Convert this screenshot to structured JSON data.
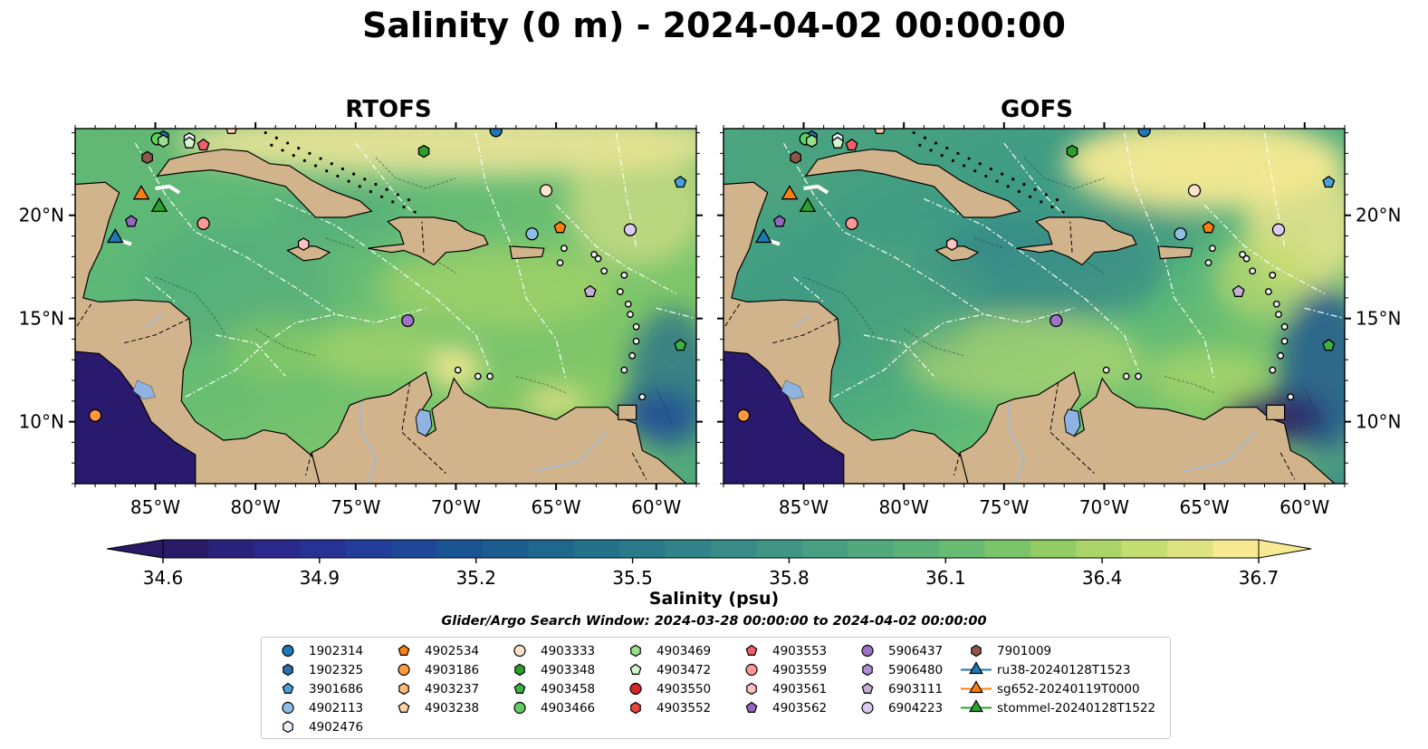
{
  "title": "Salinity (0 m) - 2024-04-02 00:00:00",
  "panels": [
    {
      "title": "RTOFS"
    },
    {
      "title": "GOFS"
    }
  ],
  "map_extent": {
    "lon": [
      -89,
      -58
    ],
    "lat": [
      7,
      24.2
    ]
  },
  "lon_ticks": [
    -85,
    -80,
    -75,
    -70,
    -65,
    -60
  ],
  "lon_tick_labels": [
    "85°W",
    "80°W",
    "75°W",
    "70°W",
    "65°W",
    "60°W"
  ],
  "lat_ticks": [
    10,
    15,
    20
  ],
  "lat_tick_labels": [
    "10°N",
    "15°N",
    "20°N"
  ],
  "colors": {
    "land": "#d2b48c",
    "lake": "#8fb4e3",
    "ocean_base": "#5bb878",
    "pacific": "#2a1a6e"
  },
  "colorbar": {
    "label": "Salinity (psu)",
    "min": 34.6,
    "max": 36.7,
    "tick_values": [
      34.6,
      34.9,
      35.2,
      35.5,
      35.8,
      36.1,
      36.4,
      36.7
    ],
    "tick_labels": [
      "34.6",
      "34.9",
      "35.2",
      "35.5",
      "35.8",
      "36.1",
      "36.4",
      "36.7"
    ],
    "colormap": [
      "#281a66",
      "#2a2a8f",
      "#213f9b",
      "#1a5791",
      "#1f6b8c",
      "#2d7e8a",
      "#3d9087",
      "#4da67e",
      "#63b872",
      "#8ccc63",
      "#c2dc6e",
      "#f7ea92"
    ]
  },
  "search_window": "Glider/Argo Search Window: 2024-03-28 00:00:00 to 2024-04-02 00:00:00",
  "legend": {
    "columns": [
      [
        {
          "label": "1902314",
          "marker": "circle",
          "color": "#1f77b4"
        },
        {
          "label": "1902325",
          "marker": "hexagon",
          "color": "#2c6fab"
        },
        {
          "label": "3901686",
          "marker": "pentagon",
          "color": "#4b9fd6"
        },
        {
          "label": "4902113",
          "marker": "circle",
          "color": "#8ec0e6"
        },
        {
          "label": "4902476",
          "marker": "hexagon",
          "color": "#e6f3fb"
        }
      ],
      [
        {
          "label": "4902534",
          "marker": "pentagon",
          "color": "#ff7f0e"
        },
        {
          "label": "4903186",
          "marker": "circle",
          "color": "#ff9a3c"
        },
        {
          "label": "4903237",
          "marker": "hexagon",
          "color": "#ffbb78"
        },
        {
          "label": "4903238",
          "marker": "pentagon",
          "color": "#ffd4a8"
        }
      ],
      [
        {
          "label": "4903333",
          "marker": "circle",
          "color": "#ffe4cc"
        },
        {
          "label": "4903348",
          "marker": "hexagon",
          "color": "#2ca02c"
        },
        {
          "label": "4903458",
          "marker": "pentagon",
          "color": "#3cb043"
        },
        {
          "label": "4903466",
          "marker": "circle",
          "color": "#5fcf5f"
        }
      ],
      [
        {
          "label": "4903469",
          "marker": "hexagon",
          "color": "#98df8a"
        },
        {
          "label": "4903472",
          "marker": "pentagon",
          "color": "#d5f5cf"
        },
        {
          "label": "4903550",
          "marker": "circle",
          "color": "#d62728"
        },
        {
          "label": "4903552",
          "marker": "hexagon",
          "color": "#e8453f"
        }
      ],
      [
        {
          "label": "4903553",
          "marker": "pentagon",
          "color": "#f0606a"
        },
        {
          "label": "4903559",
          "marker": "circle",
          "color": "#ff9896"
        },
        {
          "label": "4903561",
          "marker": "hexagon",
          "color": "#ffc2c0"
        },
        {
          "label": "4903562",
          "marker": "pentagon",
          "color": "#9467bd"
        }
      ],
      [
        {
          "label": "5906437",
          "marker": "circle",
          "color": "#9d72c9"
        },
        {
          "label": "5906480",
          "marker": "hexagon",
          "color": "#b28ddb"
        },
        {
          "label": "6903111",
          "marker": "pentagon",
          "color": "#c5b0d5"
        },
        {
          "label": "6904223",
          "marker": "circle",
          "color": "#dccbf0"
        }
      ],
      [
        {
          "label": "7901009",
          "marker": "hexagon",
          "color": "#8c564b"
        },
        {
          "label": "ru38-20240128T1523",
          "marker": "line-triangle",
          "color": "#1f77b4"
        },
        {
          "label": "sg652-20240119T0000",
          "marker": "line-triangle",
          "color": "#ff7f0e"
        },
        {
          "label": "stommel-20240128T1522",
          "marker": "line-triangle",
          "color": "#2ca02c"
        }
      ]
    ]
  },
  "floats": [
    {
      "label": "1902314",
      "lon": -68,
      "lat": 24.1,
      "marker": "circle",
      "color": "#1f77b4"
    },
    {
      "label": "1902325",
      "lon": -84.6,
      "lat": 23.8,
      "marker": "hexagon",
      "color": "#2c6fab"
    },
    {
      "label": "3901686",
      "lon": -58.8,
      "lat": 21.6,
      "marker": "pentagon",
      "color": "#4b9fd6"
    },
    {
      "label": "4902113",
      "lon": -66.2,
      "lat": 19.1,
      "marker": "circle",
      "color": "#8ec0e6"
    },
    {
      "label": "4902476",
      "lon": -83.3,
      "lat": 23.7,
      "marker": "hexagon",
      "color": "#e6f3fb"
    },
    {
      "label": "4902534",
      "lon": -64.8,
      "lat": 19.4,
      "marker": "pentagon",
      "color": "#ff7f0e"
    },
    {
      "label": "4903186",
      "lon": -88,
      "lat": 10.3,
      "marker": "circle",
      "color": "#ff9a3c"
    },
    {
      "label": "4903238",
      "lon": -81.2,
      "lat": 24.2,
      "marker": "pentagon",
      "color": "#ffd4a8"
    },
    {
      "label": "4903333",
      "lon": -65.5,
      "lat": 21.2,
      "marker": "circle",
      "color": "#ffe4cc"
    },
    {
      "label": "4903348",
      "lon": -71.6,
      "lat": 23.1,
      "marker": "hexagon",
      "color": "#2ca02c"
    },
    {
      "label": "4903458",
      "lon": -58.8,
      "lat": 13.7,
      "marker": "pentagon",
      "color": "#3cb043"
    },
    {
      "label": "4903466",
      "lon": -84.9,
      "lat": 23.7,
      "marker": "circle",
      "color": "#5fcf5f"
    },
    {
      "label": "4903469",
      "lon": -84.6,
      "lat": 23.6,
      "marker": "hexagon",
      "color": "#98df8a"
    },
    {
      "label": "4903472",
      "lon": -83.3,
      "lat": 23.5,
      "marker": "pentagon",
      "color": "#d5f5cf"
    },
    {
      "label": "4903553",
      "lon": -82.6,
      "lat": 23.4,
      "marker": "pentagon",
      "color": "#f0606a"
    },
    {
      "label": "4903559",
      "lon": -82.6,
      "lat": 19.6,
      "marker": "circle",
      "color": "#ff9896"
    },
    {
      "label": "4903561",
      "lon": -77.6,
      "lat": 18.6,
      "marker": "hexagon",
      "color": "#ffc2c0"
    },
    {
      "label": "4903562",
      "lon": -86.2,
      "lat": 19.7,
      "marker": "pentagon",
      "color": "#9467bd"
    },
    {
      "label": "5906437",
      "lon": -72.4,
      "lat": 14.9,
      "marker": "circle",
      "color": "#9d72c9"
    },
    {
      "label": "6903111",
      "lon": -63.3,
      "lat": 16.3,
      "marker": "pentagon",
      "color": "#c5b0d5"
    },
    {
      "label": "6904223",
      "lon": -61.3,
      "lat": 19.3,
      "marker": "circle",
      "color": "#dccbf0"
    },
    {
      "label": "7901009",
      "lon": -85.4,
      "lat": 22.8,
      "marker": "hexagon",
      "color": "#8c564b"
    }
  ],
  "gliders": [
    {
      "label": "ru38-20240128T1523",
      "lon": -87.0,
      "lat": 18.9,
      "color": "#1f77b4"
    },
    {
      "label": "sg652-20240119T0000",
      "lon": -85.7,
      "lat": 21.0,
      "color": "#ff7f0e"
    },
    {
      "label": "stommel-20240128T1522",
      "lon": -84.8,
      "lat": 20.4,
      "color": "#2ca02c"
    }
  ]
}
